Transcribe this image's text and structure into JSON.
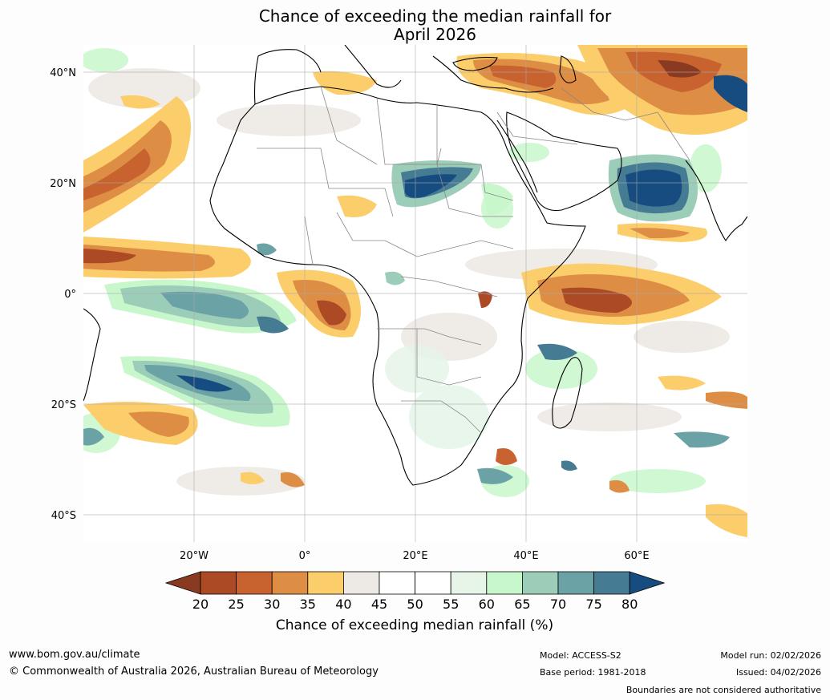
{
  "title": {
    "line1": "Chance of exceeding the median rainfall for",
    "line2": "April 2026"
  },
  "axes": {
    "lat_labels": [
      "40°N",
      "20°N",
      "0°",
      "20°S",
      "40°S"
    ],
    "lon_labels": [
      "20°W",
      "0°",
      "20°E",
      "40°E",
      "60°E"
    ]
  },
  "colorbar": {
    "ticks": [
      "20",
      "25",
      "30",
      "35",
      "40",
      "45",
      "50",
      "55",
      "60",
      "65",
      "70",
      "75",
      "80"
    ],
    "colors": [
      "#8a3a20",
      "#ad4a26",
      "#c8632f",
      "#de8d45",
      "#fccd6b",
      "#ede9e4",
      "#ffffff",
      "#ffffff",
      "#e6f5e8",
      "#c8f7cb",
      "#9bcdb8",
      "#6aa2a6",
      "#467b94",
      "#164c80"
    ],
    "label": "Chance of exceeding median rainfall (%)"
  },
  "footer": {
    "website": "www.bom.gov.au/climate",
    "copyright": "© Commonwealth of Australia 2026, Australian Bureau of Meteorology",
    "model": "Model: ACCESS-S2",
    "base_period": "Base period: 1981-2018",
    "model_run": "Model run: 02/02/2026",
    "issued": "Issued: 04/02/2026",
    "disclaimer": "Boundaries are not considered authoritative"
  }
}
